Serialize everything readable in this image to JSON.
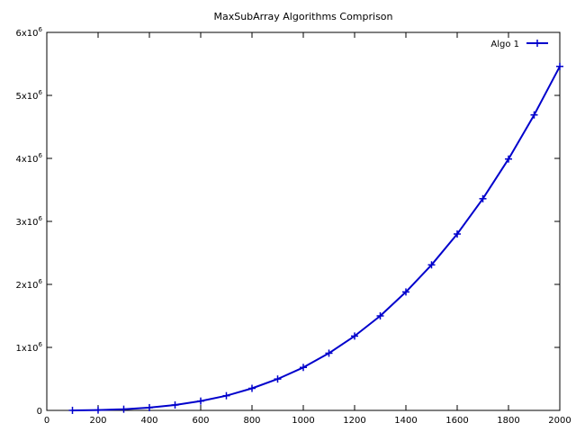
{
  "chart_data": {
    "type": "line",
    "title": "MaxSubArray Algorithms Comprison",
    "xlabel": "",
    "ylabel": "",
    "xlim": [
      0,
      2000
    ],
    "ylim": [
      0,
      6000000
    ],
    "x_ticks": [
      {
        "value": 0,
        "label": "0"
      },
      {
        "value": 200,
        "label": "200"
      },
      {
        "value": 400,
        "label": "400"
      },
      {
        "value": 600,
        "label": "600"
      },
      {
        "value": 800,
        "label": "800"
      },
      {
        "value": 1000,
        "label": "1000"
      },
      {
        "value": 1200,
        "label": "1200"
      },
      {
        "value": 1400,
        "label": "1400"
      },
      {
        "value": 1600,
        "label": "1600"
      },
      {
        "value": 1800,
        "label": "1800"
      },
      {
        "value": 2000,
        "label": "2000"
      }
    ],
    "y_ticks": [
      {
        "value": 0,
        "mantissa": "0",
        "exp": ""
      },
      {
        "value": 1000000,
        "mantissa": "1x10",
        "exp": "6"
      },
      {
        "value": 2000000,
        "mantissa": "2x10",
        "exp": "6"
      },
      {
        "value": 3000000,
        "mantissa": "3x10",
        "exp": "6"
      },
      {
        "value": 4000000,
        "mantissa": "4x10",
        "exp": "6"
      },
      {
        "value": 5000000,
        "mantissa": "5x10",
        "exp": "6"
      },
      {
        "value": 6000000,
        "mantissa": "6x10",
        "exp": "6"
      }
    ],
    "grid": false,
    "legend": "top-right",
    "series": [
      {
        "name": "Algo 1",
        "color": "#0000cc",
        "marker": "plus",
        "x": [
          100,
          200,
          300,
          400,
          500,
          600,
          700,
          800,
          900,
          1000,
          1100,
          1200,
          1300,
          1400,
          1500,
          1600,
          1700,
          1800,
          1900,
          2000
        ],
        "y": [
          700,
          5500,
          19000,
          44000,
          86000,
          148000,
          233000,
          350000,
          498000,
          682000,
          908000,
          1180000,
          1500000,
          1880000,
          2310000,
          2800000,
          3360000,
          3990000,
          4690000,
          5460000
        ]
      }
    ]
  }
}
